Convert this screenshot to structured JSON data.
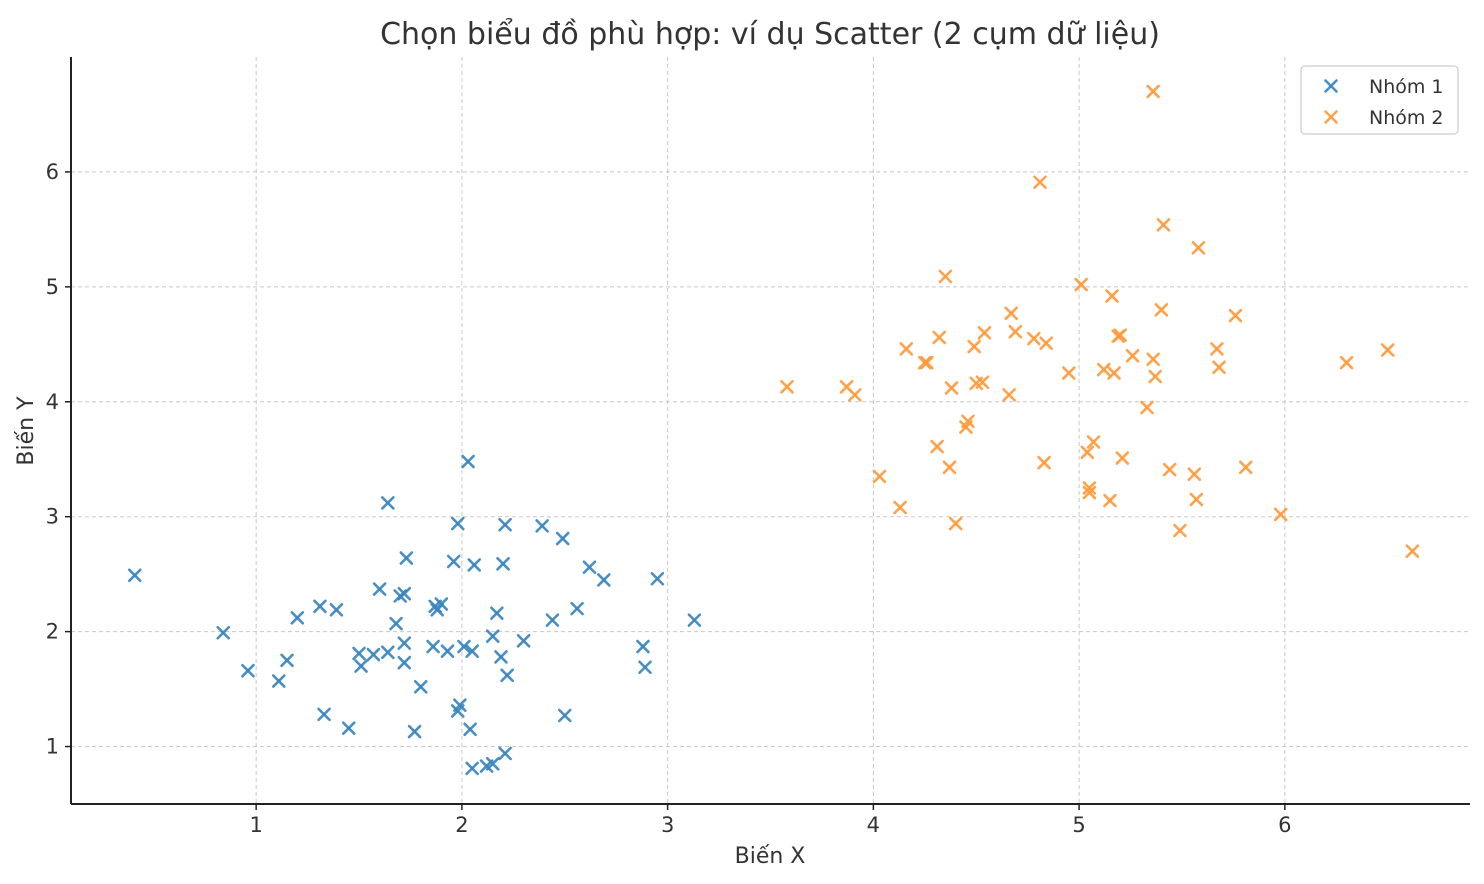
{
  "chart_data": {
    "type": "scatter",
    "title": "Chọn biểu đồ phù hợp: ví dụ Scatter (2 cụm dữ liệu)",
    "xlabel": "Biến X",
    "ylabel": "Biến Y",
    "xlim": [
      0.1,
      6.9
    ],
    "ylim": [
      0.5,
      7.0
    ],
    "xticks": [
      1,
      2,
      3,
      4,
      5,
      6
    ],
    "yticks": [
      1,
      2,
      3,
      4,
      5,
      6
    ],
    "grid": true,
    "legend_position": "top-right",
    "marker": "x",
    "series": [
      {
        "name": "Nhóm 1",
        "color": "#3a86bf",
        "points": [
          [
            0.41,
            2.49
          ],
          [
            0.84,
            1.99
          ],
          [
            0.96,
            1.66
          ],
          [
            1.11,
            1.57
          ],
          [
            1.15,
            1.75
          ],
          [
            1.2,
            2.12
          ],
          [
            1.31,
            2.22
          ],
          [
            1.33,
            1.28
          ],
          [
            1.39,
            2.19
          ],
          [
            1.45,
            1.16
          ],
          [
            1.5,
            1.81
          ],
          [
            1.51,
            1.7
          ],
          [
            1.57,
            1.8
          ],
          [
            1.6,
            2.37
          ],
          [
            1.64,
            1.82
          ],
          [
            1.64,
            3.12
          ],
          [
            1.68,
            2.07
          ],
          [
            1.7,
            2.31
          ],
          [
            1.72,
            2.33
          ],
          [
            1.72,
            1.9
          ],
          [
            1.72,
            1.73
          ],
          [
            1.73,
            2.64
          ],
          [
            1.77,
            1.13
          ],
          [
            1.8,
            1.52
          ],
          [
            1.86,
            1.87
          ],
          [
            1.87,
            2.22
          ],
          [
            1.88,
            2.19
          ],
          [
            1.9,
            2.24
          ],
          [
            1.93,
            1.83
          ],
          [
            1.96,
            2.61
          ],
          [
            1.98,
            2.94
          ],
          [
            1.98,
            1.31
          ],
          [
            1.99,
            1.36
          ],
          [
            2.01,
            1.87
          ],
          [
            2.03,
            3.48
          ],
          [
            2.04,
            1.15
          ],
          [
            2.05,
            0.81
          ],
          [
            2.05,
            1.83
          ],
          [
            2.06,
            2.58
          ],
          [
            2.12,
            0.83
          ],
          [
            2.15,
            1.96
          ],
          [
            2.15,
            0.85
          ],
          [
            2.17,
            2.16
          ],
          [
            2.19,
            1.78
          ],
          [
            2.2,
            2.59
          ],
          [
            2.21,
            2.93
          ],
          [
            2.21,
            0.94
          ],
          [
            2.22,
            1.62
          ],
          [
            2.3,
            1.92
          ],
          [
            2.39,
            2.92
          ],
          [
            2.44,
            2.1
          ],
          [
            2.49,
            2.81
          ],
          [
            2.5,
            1.27
          ],
          [
            2.56,
            2.2
          ],
          [
            2.62,
            2.56
          ],
          [
            2.69,
            2.45
          ],
          [
            2.88,
            1.87
          ],
          [
            2.89,
            1.69
          ],
          [
            2.95,
            2.46
          ],
          [
            3.13,
            2.1
          ]
        ]
      },
      {
        "name": "Nhóm 2",
        "color": "#ff9a3c",
        "points": [
          [
            3.58,
            4.13
          ],
          [
            3.87,
            4.13
          ],
          [
            3.91,
            4.06
          ],
          [
            4.03,
            3.35
          ],
          [
            4.13,
            3.08
          ],
          [
            4.16,
            4.46
          ],
          [
            4.25,
            4.34
          ],
          [
            4.26,
            4.34
          ],
          [
            4.31,
            3.61
          ],
          [
            4.32,
            4.56
          ],
          [
            4.35,
            5.09
          ],
          [
            4.37,
            3.43
          ],
          [
            4.38,
            4.12
          ],
          [
            4.4,
            2.94
          ],
          [
            4.45,
            3.78
          ],
          [
            4.46,
            3.83
          ],
          [
            4.49,
            4.48
          ],
          [
            4.5,
            4.16
          ],
          [
            4.53,
            4.17
          ],
          [
            4.54,
            4.6
          ],
          [
            4.66,
            4.06
          ],
          [
            4.67,
            4.77
          ],
          [
            4.69,
            4.61
          ],
          [
            4.78,
            4.55
          ],
          [
            4.81,
            5.91
          ],
          [
            4.83,
            3.47
          ],
          [
            4.84,
            4.51
          ],
          [
            4.95,
            4.25
          ],
          [
            5.01,
            5.02
          ],
          [
            5.04,
            3.56
          ],
          [
            5.05,
            3.21
          ],
          [
            5.05,
            3.25
          ],
          [
            5.07,
            3.65
          ],
          [
            5.12,
            4.28
          ],
          [
            5.15,
            3.14
          ],
          [
            5.16,
            4.92
          ],
          [
            5.17,
            4.25
          ],
          [
            5.19,
            4.57
          ],
          [
            5.2,
            4.58
          ],
          [
            5.21,
            3.51
          ],
          [
            5.26,
            4.4
          ],
          [
            5.33,
            3.95
          ],
          [
            5.36,
            6.7
          ],
          [
            5.36,
            4.37
          ],
          [
            5.37,
            4.22
          ],
          [
            5.4,
            4.8
          ],
          [
            5.41,
            5.54
          ],
          [
            5.44,
            3.41
          ],
          [
            5.49,
            2.88
          ],
          [
            5.56,
            3.37
          ],
          [
            5.57,
            3.15
          ],
          [
            5.58,
            5.34
          ],
          [
            5.67,
            4.46
          ],
          [
            5.68,
            4.3
          ],
          [
            5.76,
            4.75
          ],
          [
            5.81,
            3.43
          ],
          [
            5.98,
            3.02
          ],
          [
            6.3,
            4.34
          ],
          [
            6.5,
            4.45
          ],
          [
            6.62,
            2.7
          ]
        ]
      }
    ]
  }
}
